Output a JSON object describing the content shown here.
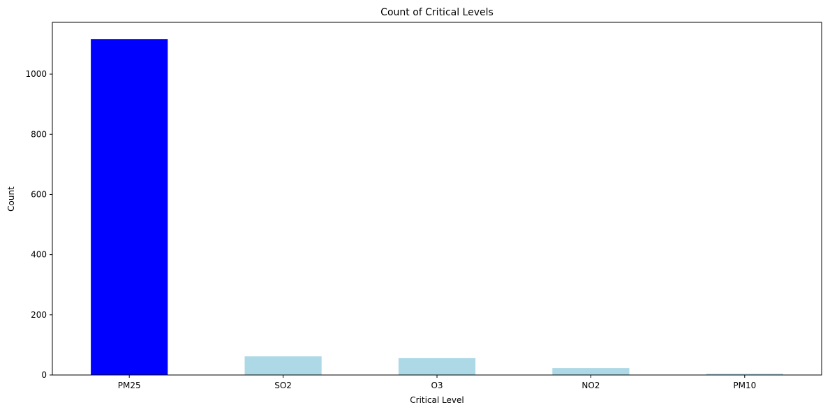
{
  "chart_data": {
    "type": "bar",
    "title": "Count of Critical Levels",
    "xlabel": "Critical Level",
    "ylabel": "Count",
    "categories": [
      "PM25",
      "SO2",
      "O3",
      "NO2",
      "PM10"
    ],
    "values": [
      1116,
      62,
      56,
      23,
      4
    ],
    "colors": [
      "#0000ff",
      "#add8e6",
      "#add8e6",
      "#add8e6",
      "#add8e6"
    ],
    "ylim": [
      0,
      1172
    ],
    "yticks": [
      0,
      200,
      400,
      600,
      800,
      1000
    ],
    "grid": false,
    "legend": "none"
  }
}
